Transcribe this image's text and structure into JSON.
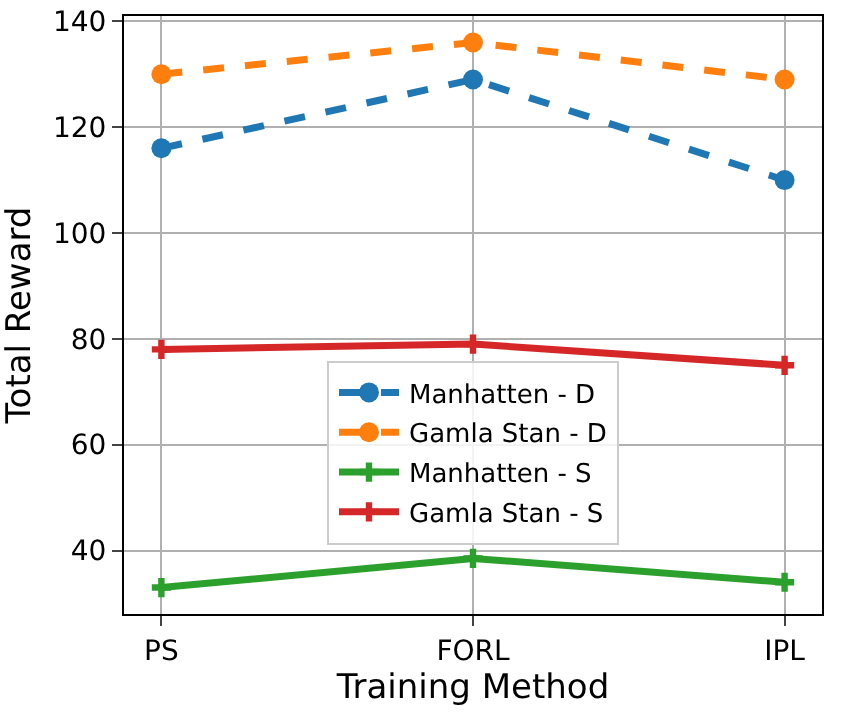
{
  "chart_data": {
    "type": "line",
    "xlabel": "Training Method",
    "ylabel": "Total Reward",
    "categories": [
      "PS",
      "FORL",
      "IPL"
    ],
    "series": [
      {
        "name": "Manhatten - D",
        "color": "#1f77b4",
        "values": [
          116,
          129,
          110
        ],
        "marker": "circle",
        "line_style": "dashed"
      },
      {
        "name": "Gamla Stan - D",
        "color": "#ff7f0e",
        "values": [
          130,
          136,
          129
        ],
        "marker": "circle",
        "line_style": "dashed"
      },
      {
        "name": "Manhatten - S",
        "color": "#2ca02c",
        "values": [
          33,
          38.5,
          34
        ],
        "marker": "cross",
        "line_style": "solid"
      },
      {
        "name": "Gamla Stan - S",
        "color": "#d62728",
        "values": [
          78,
          79,
          75
        ],
        "marker": "cross",
        "line_style": "solid"
      }
    ],
    "ylim": [
      28,
      141
    ],
    "yticks": [
      40,
      60,
      80,
      100,
      120,
      140
    ],
    "grid": true,
    "legend": "center"
  }
}
